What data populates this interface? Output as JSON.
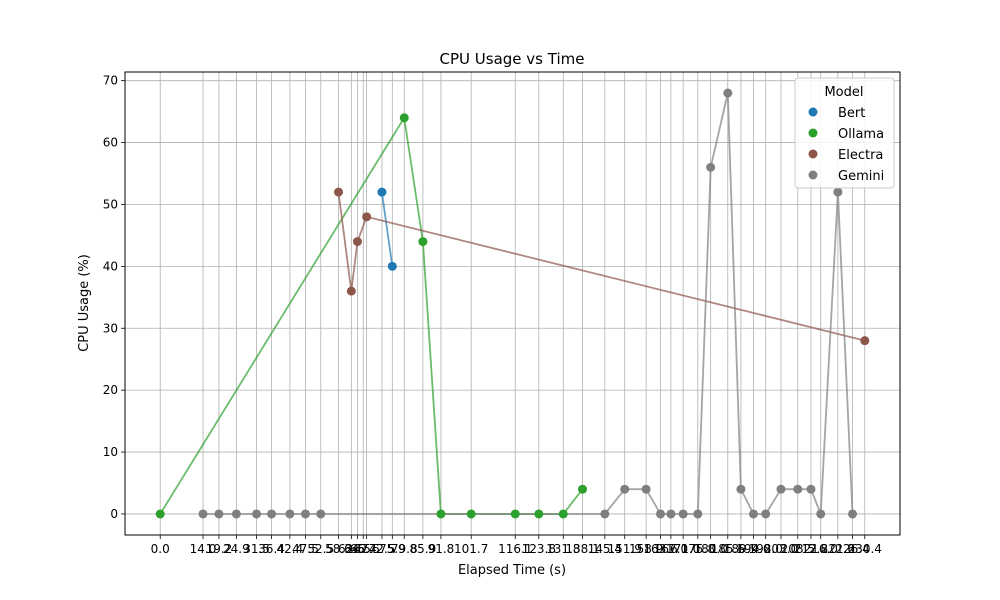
{
  "chart_data": {
    "type": "line",
    "title": "CPU Usage vs Time",
    "xlabel": "Elapsed Time (s)",
    "ylabel": "CPU Usage (%)",
    "ylim": [
      -3.4,
      71.4
    ],
    "y_ticks": [
      0,
      10,
      20,
      30,
      40,
      50,
      60,
      70
    ],
    "x_ticks": [
      "0.0",
      "14.0",
      "19.2",
      "24.9",
      "31.5",
      "36.4",
      "42.4",
      "47.5",
      "52.5",
      "58.3",
      "62.5",
      "64.5",
      "66.4",
      "67.5",
      "72.5",
      "75.9",
      "79.8",
      "85.9",
      "91.8",
      "101.7",
      "116.1",
      "123.8",
      "131.8",
      "138.1",
      "145.4",
      "151.9",
      "158.9",
      "163.6",
      "167.0",
      "171.0",
      "175.8",
      "180.0",
      "185.6",
      "189.9",
      "194.0",
      "198.0",
      "203.0",
      "208.5",
      "212.8",
      "216.0",
      "221.6",
      "226.4",
      "230.4"
    ],
    "grid": true,
    "legend_title": "Model",
    "legend_position": "top-right",
    "series": [
      {
        "name": "Bert",
        "color": "#1f77b4",
        "x": [
          72.5,
          75.9
        ],
        "y": [
          52,
          40
        ]
      },
      {
        "name": "Ollama",
        "color": "#2ca02c",
        "x": [
          0.0,
          79.8,
          85.9,
          91.8,
          101.7,
          116.1,
          123.8,
          131.8,
          138.1
        ],
        "y": [
          0,
          64,
          44,
          0,
          0,
          0,
          0,
          0,
          4
        ]
      },
      {
        "name": "Electra",
        "color": "#8c564b",
        "x": [
          58.3,
          62.5,
          64.5,
          67.5,
          230.4
        ],
        "y": [
          52,
          36,
          44,
          48,
          28
        ]
      },
      {
        "name": "Gemini",
        "color": "#7f7f7f",
        "x": [
          14.0,
          19.2,
          24.9,
          31.5,
          36.4,
          42.4,
          47.5,
          52.5,
          145.4,
          151.9,
          158.9,
          163.6,
          167.0,
          171.0,
          175.8,
          180.0,
          185.6,
          189.9,
          194.0,
          198.0,
          203.0,
          208.5,
          212.8,
          216.0,
          221.6,
          226.4
        ],
        "y": [
          0,
          0,
          0,
          0,
          0,
          0,
          0,
          0,
          0,
          4,
          4,
          0,
          0,
          0,
          0,
          56,
          68,
          4,
          0,
          0,
          4,
          4,
          4,
          0,
          52,
          0
        ]
      }
    ]
  }
}
